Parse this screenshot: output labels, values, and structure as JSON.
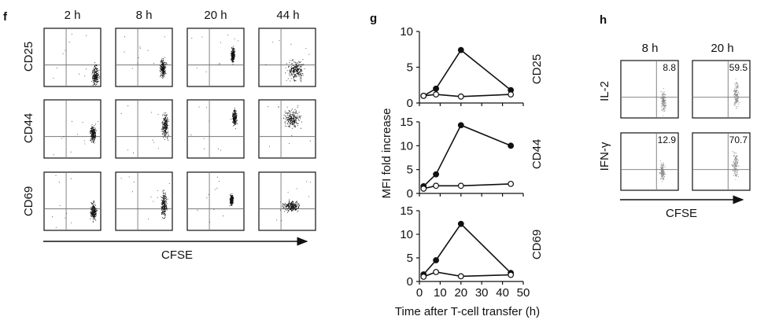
{
  "panels": {
    "f": {
      "label": "f",
      "times": [
        "2 h",
        "8 h",
        "20 h",
        "44 h"
      ],
      "markers": [
        "CD25",
        "CD44",
        "CD69"
      ],
      "xlabel": "CFSE"
    },
    "g": {
      "label": "g"
    },
    "h": {
      "label": "h",
      "times": [
        "8 h",
        "20 h"
      ],
      "markers": [
        "IL-2",
        "IFN-γ"
      ],
      "percentages": [
        [
          "8.8",
          "59.5"
        ],
        [
          "12.9",
          "70.7"
        ]
      ],
      "xlabel": "CFSE"
    }
  },
  "chart_data": {
    "type": "line",
    "ylabel": "MFI fold increase",
    "xlabel": "Time after T-cell transfer (h)",
    "x": [
      2,
      8,
      20,
      44
    ],
    "xlim": [
      0,
      50
    ],
    "xticks": [
      "0",
      "10",
      "20",
      "30",
      "40",
      "50"
    ],
    "subplots": [
      {
        "marker": "CD25",
        "ylim": [
          0,
          10
        ],
        "yticks": [
          "0",
          "5",
          "10"
        ],
        "series": [
          {
            "name": "filled",
            "values": [
              1.0,
              2.0,
              7.4,
              1.8
            ]
          },
          {
            "name": "open",
            "values": [
              1.0,
              1.2,
              0.9,
              1.2
            ]
          }
        ]
      },
      {
        "marker": "CD44",
        "ylim": [
          0,
          15
        ],
        "yticks": [
          "0",
          "5",
          "10",
          "15"
        ],
        "series": [
          {
            "name": "filled",
            "values": [
              1.5,
              4.0,
              14.3,
              10.0
            ]
          },
          {
            "name": "open",
            "values": [
              1.0,
              1.6,
              1.6,
              2.0
            ]
          }
        ]
      },
      {
        "marker": "CD69",
        "ylim": [
          0,
          15
        ],
        "yticks": [
          "0",
          "5",
          "10",
          "15"
        ],
        "series": [
          {
            "name": "filled",
            "values": [
              1.5,
              4.5,
              12.2,
              1.8
            ]
          },
          {
            "name": "open",
            "values": [
              1.0,
              2.0,
              1.1,
              1.4
            ]
          }
        ]
      }
    ]
  }
}
